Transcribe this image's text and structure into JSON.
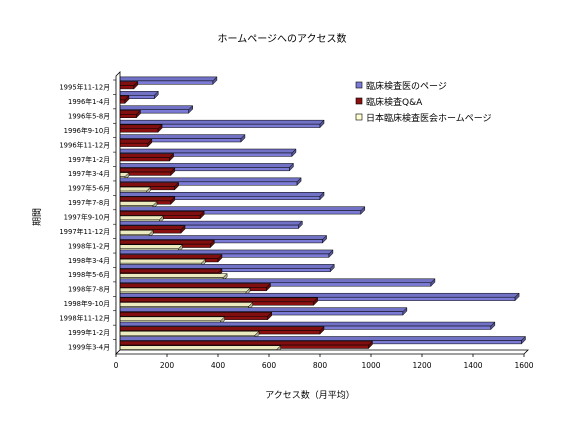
{
  "chart_data": {
    "type": "bar",
    "orientation": "horizontal",
    "style": "3d-clustered",
    "title": "ホームページへのアクセス数",
    "xlabel": "アクセス数（月平均）",
    "ylabel": "期間",
    "xlim": [
      0,
      1600
    ],
    "xticks": [
      "0",
      "200",
      "400",
      "600",
      "800",
      "1000",
      "1200",
      "1400",
      "1600"
    ],
    "grid": false,
    "legend_position": "top-right",
    "categories": [
      "1995年11-12月",
      "1996年1-4月",
      "1996年5-8月",
      "1996年9-10月",
      "1996年11-12月",
      "1997年1-2月",
      "1997年3-4月",
      "1997年5-6月",
      "1997年7-8月",
      "1997年9-10月",
      "1997年11-12月",
      "1998年1-2月",
      "1998年3-4月",
      "1998年5-6月",
      "1998年7-8月",
      "1998年9-10月",
      "1998年11-12月",
      "1999年1-2月",
      "1999年3-4月"
    ],
    "series": [
      {
        "name": "臨床検査医のページ",
        "color": "#7b7bd6",
        "values": [
          380,
          150,
          285,
          800,
          490,
          690,
          680,
          710,
          800,
          960,
          715,
          810,
          835,
          840,
          1235,
          1565,
          1125,
          1470,
          1590
        ]
      },
      {
        "name": "臨床検査Q&A",
        "color": "#8c1010",
        "values": [
          70,
          35,
          80,
          165,
          125,
          210,
          215,
          230,
          215,
          330,
          255,
          370,
          400,
          400,
          590,
          775,
          595,
          800,
          990
        ]
      },
      {
        "name": "日本臨床検査医会ホームページ",
        "color": "#ffffd0",
        "values": [
          0,
          0,
          0,
          0,
          0,
          0,
          35,
          120,
          145,
          170,
          130,
          245,
          335,
          420,
          510,
          520,
          410,
          545,
          630
        ]
      }
    ]
  }
}
